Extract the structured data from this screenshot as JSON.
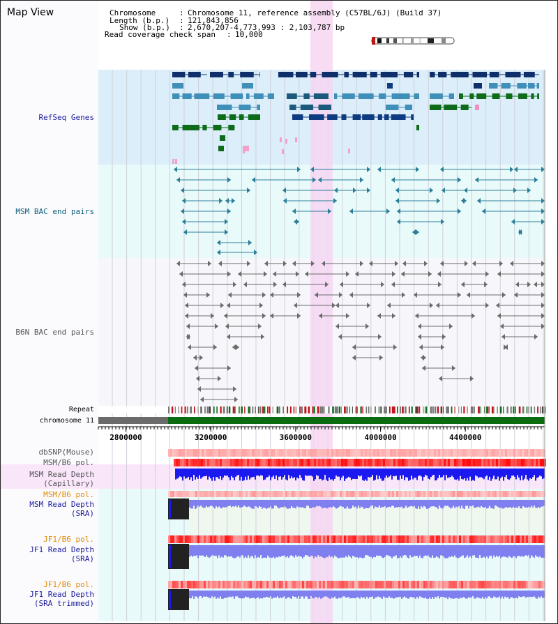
{
  "title": "Map View",
  "info": {
    "chromosome_label": "Chromosome",
    "chromosome_value": "Chromosome 11, reference assembly (C57BL/6J) (Build 37)",
    "length_label": "Length (b.p.)",
    "length_value": "121,843,856",
    "show_label": "Show (b.p.)",
    "show_value": "2,670,207-4,773,993 : 2,103,787 bp",
    "span_label": "Read coverage check span",
    "span_value": "10,000"
  },
  "tracks": {
    "refseq": "RefSeq Genes",
    "msm_bac": "MSM BAC end pairs",
    "b6n_bac": "B6N BAC end pairs",
    "repeat": "Repeat",
    "chromosome": "chromosome 11",
    "dbsnp": "dbSNP(Mouse)",
    "msm_b6_pol": "MSM/B6 pol.",
    "msm_depth_cap_1": "MSM Read Depth",
    "msm_depth_cap_2": "(Capillary)",
    "msm_b6_pol_2": "MSM/B6 pol.",
    "msm_depth_sra_1": "MSM Read Depth",
    "msm_depth_sra_2": "(SRA)",
    "jf1_b6_pol": "JF1/B6 pol.",
    "jf1_depth_sra_1": "JF1 Read Depth",
    "jf1_depth_sra_2": "(SRA)",
    "jf1_b6_pol_2": "JF1/B6 pol.",
    "jf1_depth_trim_1": "JF1 Read Depth",
    "jf1_depth_trim_2": "(SRA trimmed)"
  },
  "axis": {
    "ticks": [
      "2800000",
      "3200000",
      "3600000",
      "4000000",
      "4400000"
    ],
    "range": [
      2670207,
      4773993
    ]
  },
  "colors": {
    "refseq_bg": "#dbeefa",
    "msm_bg": "#e9fafa",
    "highlight": "#f6d6f2",
    "navy": "#0f2f6b",
    "steel": "#3f8fb8",
    "green": "#0d6b1a",
    "teal_pair": "#2a7f98",
    "gray_pair": "#6b6b6b",
    "chromosome_green": "#0a6b10",
    "depth_blue": "#1a1af0",
    "depth_lightblue": "#7f7ff0"
  }
}
